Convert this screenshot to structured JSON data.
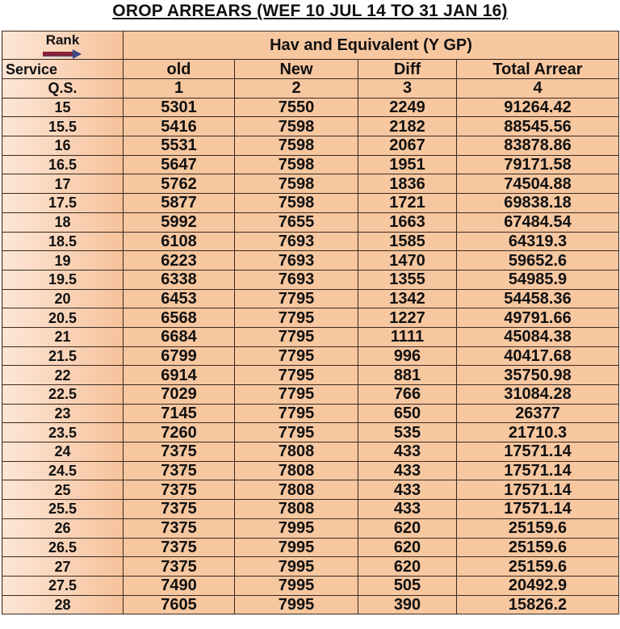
{
  "title": "OROP ARREARS  (WEF 10 JUL 14 TO 31 JAN 16)",
  "header": {
    "rank_label": "Rank",
    "rank_group": "Hav and Equivalent (Y GP)",
    "service_label": "Service",
    "columns": [
      "old",
      "New",
      "Diff",
      "Total Arrear"
    ],
    "qs_label": "Q.S.",
    "column_numbers": [
      "1",
      "2",
      "3",
      "4"
    ],
    "arrow_icon": "right-arrow-icon"
  },
  "rows": [
    [
      "15",
      "5301",
      "7550",
      "2249",
      "91264.42"
    ],
    [
      "15.5",
      "5416",
      "7598",
      "2182",
      "88545.56"
    ],
    [
      "16",
      "5531",
      "7598",
      "2067",
      "83878.86"
    ],
    [
      "16.5",
      "5647",
      "7598",
      "1951",
      "79171.58"
    ],
    [
      "17",
      "5762",
      "7598",
      "1836",
      "74504.88"
    ],
    [
      "17.5",
      "5877",
      "7598",
      "1721",
      "69838.18"
    ],
    [
      "18",
      "5992",
      "7655",
      "1663",
      "67484.54"
    ],
    [
      "18.5",
      "6108",
      "7693",
      "1585",
      "64319.3"
    ],
    [
      "19",
      "6223",
      "7693",
      "1470",
      "59652.6"
    ],
    [
      "19.5",
      "6338",
      "7693",
      "1355",
      "54985.9"
    ],
    [
      "20",
      "6453",
      "7795",
      "1342",
      "54458.36"
    ],
    [
      "20.5",
      "6568",
      "7795",
      "1227",
      "49791.66"
    ],
    [
      "21",
      "6684",
      "7795",
      "1111",
      "45084.38"
    ],
    [
      "21.5",
      "6799",
      "7795",
      "996",
      "40417.68"
    ],
    [
      "22",
      "6914",
      "7795",
      "881",
      "35750.98"
    ],
    [
      "22.5",
      "7029",
      "7795",
      "766",
      "31084.28"
    ],
    [
      "23",
      "7145",
      "7795",
      "650",
      "26377"
    ],
    [
      "23.5",
      "7260",
      "7795",
      "535",
      "21710.3"
    ],
    [
      "24",
      "7375",
      "7808",
      "433",
      "17571.14"
    ],
    [
      "24.5",
      "7375",
      "7808",
      "433",
      "17571.14"
    ],
    [
      "25",
      "7375",
      "7808",
      "433",
      "17571.14"
    ],
    [
      "25.5",
      "7375",
      "7808",
      "433",
      "17571.14"
    ],
    [
      "26",
      "7375",
      "7995",
      "620",
      "25159.6"
    ],
    [
      "26.5",
      "7375",
      "7995",
      "620",
      "25159.6"
    ],
    [
      "27",
      "7375",
      "7995",
      "620",
      "25159.6"
    ],
    [
      "27.5",
      "7490",
      "7995",
      "505",
      "20492.9"
    ],
    [
      "28",
      "7605",
      "7995",
      "390",
      "15826.2"
    ]
  ],
  "colors": {
    "cell": "#f7c7a0",
    "border": "#3a2a20",
    "arrow_shaft": "#8b2336",
    "arrow_head": "#3b4a8a"
  }
}
